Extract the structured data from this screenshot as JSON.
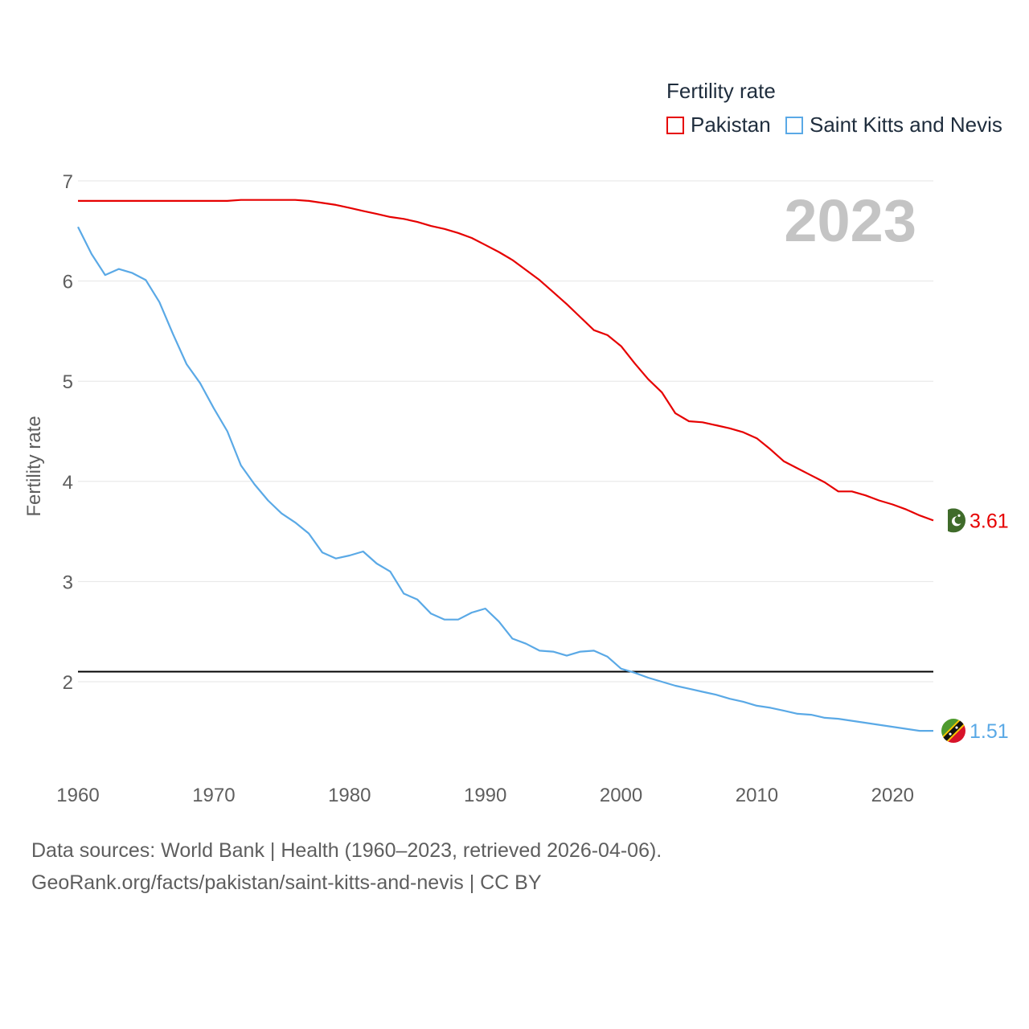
{
  "legend": {
    "title": "Fertility rate",
    "items": [
      {
        "label": "Pakistan",
        "color": "#e60000"
      },
      {
        "label": "Saint Kitts and Nevis",
        "color": "#5aa9e6"
      }
    ]
  },
  "year_label": "2023",
  "footer": {
    "line1": "Data sources: World Bank | Health (1960–2023, retrieved 2026-04-06).",
    "line2": "GeoRank.org/facts/pakistan/saint-kitts-and-nevis | CC BY"
  },
  "chart_data": {
    "type": "line",
    "title": "Fertility rate",
    "xlabel": "",
    "ylabel": "Fertility rate",
    "xlim": [
      1960,
      2023
    ],
    "ylim": [
      1.2,
      7.2
    ],
    "x_ticks": [
      1960,
      1970,
      1980,
      1990,
      2000,
      2010,
      2020
    ],
    "y_ticks": [
      2,
      3,
      4,
      5,
      6,
      7
    ],
    "grid": true,
    "reference_line": {
      "y": 2.1,
      "color": "#000000"
    },
    "series": [
      {
        "name": "Pakistan",
        "color": "#e60000",
        "end_label": "3.61",
        "flag_icon": "pakistan-flag-icon",
        "x": [
          1960,
          1961,
          1962,
          1963,
          1964,
          1965,
          1966,
          1967,
          1968,
          1969,
          1970,
          1971,
          1972,
          1973,
          1974,
          1975,
          1976,
          1977,
          1978,
          1979,
          1980,
          1981,
          1982,
          1983,
          1984,
          1985,
          1986,
          1987,
          1988,
          1989,
          1990,
          1991,
          1992,
          1993,
          1994,
          1995,
          1996,
          1997,
          1998,
          1999,
          2000,
          2001,
          2002,
          2003,
          2004,
          2005,
          2006,
          2007,
          2008,
          2009,
          2010,
          2011,
          2012,
          2013,
          2014,
          2015,
          2016,
          2017,
          2018,
          2019,
          2020,
          2021,
          2022,
          2023
        ],
        "values": [
          6.8,
          6.8,
          6.8,
          6.8,
          6.8,
          6.8,
          6.8,
          6.8,
          6.8,
          6.8,
          6.8,
          6.8,
          6.81,
          6.81,
          6.81,
          6.81,
          6.81,
          6.8,
          6.78,
          6.76,
          6.73,
          6.7,
          6.67,
          6.64,
          6.62,
          6.59,
          6.55,
          6.52,
          6.48,
          6.43,
          6.36,
          6.29,
          6.21,
          6.11,
          6.01,
          5.89,
          5.77,
          5.64,
          5.51,
          5.46,
          5.35,
          5.18,
          5.02,
          4.89,
          4.68,
          4.6,
          4.59,
          4.56,
          4.53,
          4.49,
          4.43,
          4.32,
          4.2,
          4.13,
          4.06,
          3.99,
          3.9,
          3.9,
          3.86,
          3.81,
          3.77,
          3.72,
          3.66,
          3.61
        ]
      },
      {
        "name": "Saint Kitts and Nevis",
        "color": "#5aa9e6",
        "end_label": "1.51",
        "flag_icon": "saint-kitts-and-nevis-flag-icon",
        "x": [
          1960,
          1961,
          1962,
          1963,
          1964,
          1965,
          1966,
          1967,
          1968,
          1969,
          1970,
          1971,
          1972,
          1973,
          1974,
          1975,
          1976,
          1977,
          1978,
          1979,
          1980,
          1981,
          1982,
          1983,
          1984,
          1985,
          1986,
          1987,
          1988,
          1989,
          1990,
          1991,
          1992,
          1993,
          1994,
          1995,
          1996,
          1997,
          1998,
          1999,
          2000,
          2001,
          2002,
          2003,
          2004,
          2005,
          2006,
          2007,
          2008,
          2009,
          2010,
          2011,
          2012,
          2013,
          2014,
          2015,
          2016,
          2017,
          2018,
          2019,
          2020,
          2021,
          2022,
          2023
        ],
        "values": [
          6.54,
          6.27,
          6.06,
          6.12,
          6.08,
          6.01,
          5.79,
          5.47,
          5.17,
          4.98,
          4.73,
          4.5,
          4.16,
          3.97,
          3.81,
          3.68,
          3.59,
          3.48,
          3.29,
          3.23,
          3.26,
          3.3,
          3.18,
          3.1,
          2.88,
          2.82,
          2.68,
          2.62,
          2.62,
          2.69,
          2.73,
          2.6,
          2.43,
          2.38,
          2.31,
          2.3,
          2.26,
          2.3,
          2.31,
          2.25,
          2.13,
          2.09,
          2.04,
          2.0,
          1.96,
          1.93,
          1.9,
          1.87,
          1.83,
          1.8,
          1.76,
          1.74,
          1.71,
          1.68,
          1.67,
          1.64,
          1.63,
          1.61,
          1.59,
          1.57,
          1.55,
          1.53,
          1.51,
          1.51
        ]
      }
    ]
  }
}
